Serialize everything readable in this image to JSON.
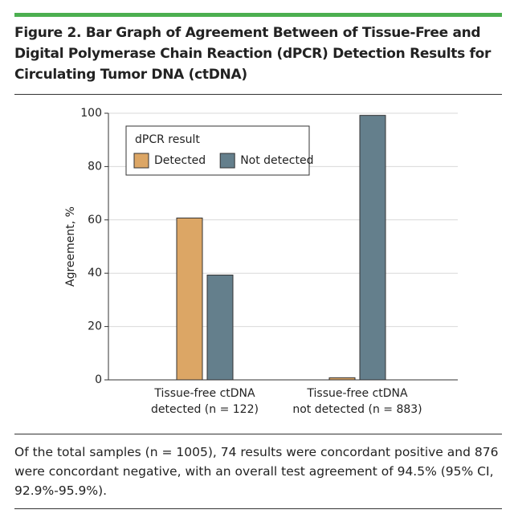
{
  "chart_data": {
    "type": "bar",
    "title": "Figure 2. Bar Graph of Agreement Between of Tissue-Free and Digital Polymerase Chain Reaction (dPCR) Detection Results for Circulating Tumor DNA (ctDNA)",
    "y_label": "Agreement, %",
    "categories": [
      "Tissue-free ctDNA\ndetected (n = 122)",
      "Tissue-free ctDNA\nnot detected (n = 883)"
    ],
    "legend_title": "dPCR result",
    "series": [
      {
        "name": "Detected",
        "color": "#dca665",
        "values": [
          60.7,
          0.8
        ]
      },
      {
        "name": "Not detected",
        "color": "#647f8c",
        "values": [
          39.3,
          99.2
        ]
      }
    ],
    "ylim": [
      0,
      100
    ],
    "yticks": [
      0,
      20,
      40,
      60,
      80,
      100
    ],
    "grid": true,
    "caption": "Of the total samples (n = 1005), 74 results were concordant positive and 876 were concordant negative, with an overall test agreement of 94.5% (95% CI, 92.9%-95.9%)."
  }
}
